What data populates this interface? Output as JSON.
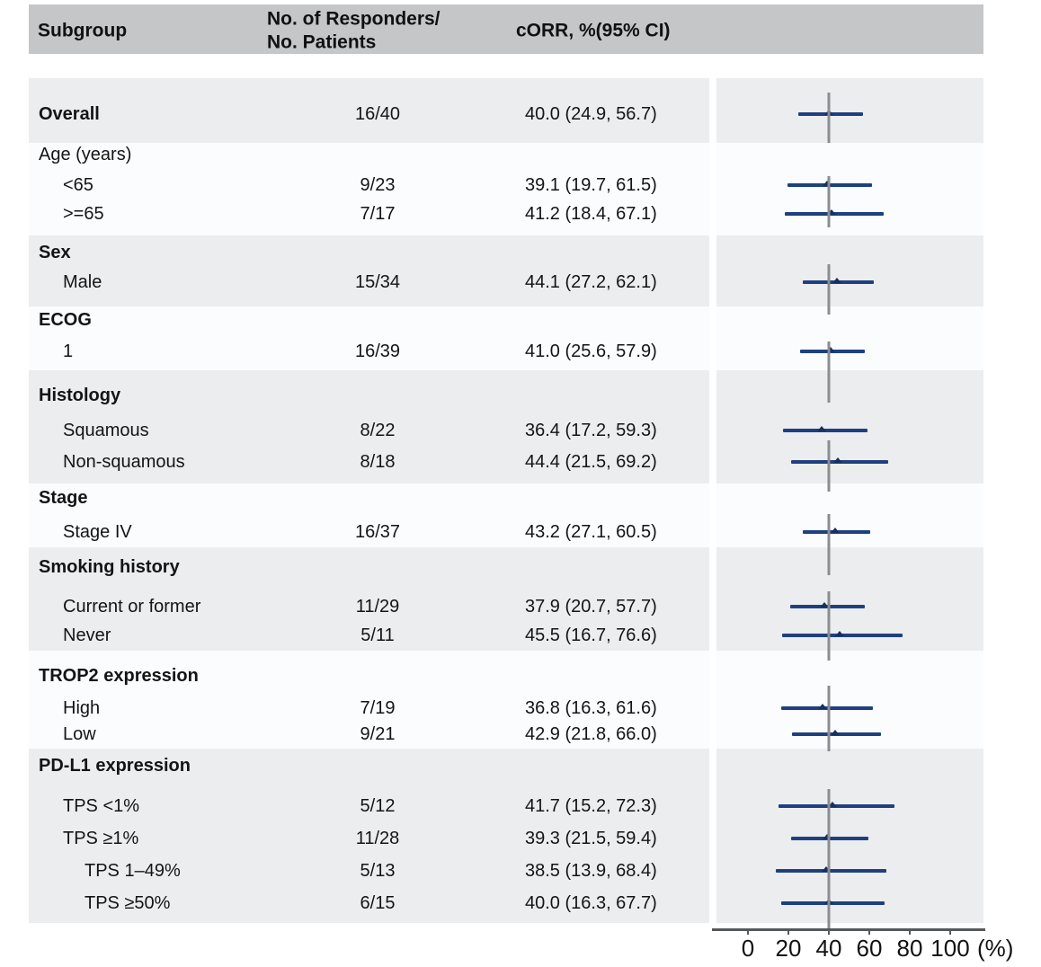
{
  "meta": {
    "background": "#ffffff",
    "header_band_color": "#c5c6c8",
    "shaded_band_color": "#ecedef",
    "white_band_color": "#fbfcfd",
    "ci_line_color": "#1e4080",
    "ci_marker_color": "#153062",
    "reference_line_color": "#8b8d90",
    "axis_color": "#55585a",
    "text_color": "#141414"
  },
  "header": {
    "subgroup": "Subgroup",
    "responders_line1": "No. of Responders/",
    "responders_line2": "No. Patients",
    "corr": "cORR, %(95% CI)"
  },
  "chart_data": {
    "type": "forest",
    "title": "",
    "xlabel": "(%)",
    "x_axis": {
      "min": 0,
      "max": 100,
      "ticks": [
        0,
        20,
        40,
        60,
        80,
        100
      ],
      "unit": "(%)",
      "reference_line": 40
    },
    "columns": [
      "Subgroup",
      "No. of Responders/No. Patients",
      "cORR, %(95% CI)"
    ],
    "sections": [
      {
        "title": null,
        "rows": [
          {
            "label": "Overall",
            "bold": true,
            "indent": 0,
            "responders": "16/40",
            "corr_text": "40.0 (24.9, 56.7)",
            "est": 40.0,
            "lo": 24.9,
            "hi": 56.7
          }
        ]
      },
      {
        "title": "Age (years)",
        "title_bold": false,
        "rows": [
          {
            "label": "<65",
            "indent": 1,
            "responders": "9/23",
            "corr_text": "39.1 (19.7, 61.5)",
            "est": 39.1,
            "lo": 19.7,
            "hi": 61.5
          },
          {
            "label": ">=65",
            "indent": 1,
            "responders": "7/17",
            "corr_text": "41.2 (18.4, 67.1)",
            "est": 41.2,
            "lo": 18.4,
            "hi": 67.1
          }
        ]
      },
      {
        "title": "Sex",
        "title_bold": true,
        "rows": [
          {
            "label": "Male",
            "indent": 1,
            "responders": "15/34",
            "corr_text": "44.1 (27.2, 62.1)",
            "est": 44.1,
            "lo": 27.2,
            "hi": 62.1
          }
        ]
      },
      {
        "title": "ECOG",
        "title_bold": true,
        "rows": [
          {
            "label": "1",
            "indent": 1,
            "responders": "16/39",
            "corr_text": "41.0 (25.6, 57.9)",
            "est": 41.0,
            "lo": 25.6,
            "hi": 57.9
          }
        ]
      },
      {
        "title": "Histology",
        "title_bold": true,
        "rows": [
          {
            "label": "Squamous",
            "indent": 1,
            "responders": "8/22",
            "corr_text": "36.4 (17.2, 59.3)",
            "est": 36.4,
            "lo": 17.2,
            "hi": 59.3
          },
          {
            "label": "Non-squamous",
            "indent": 1,
            "responders": "8/18",
            "corr_text": "44.4 (21.5, 69.2)",
            "est": 44.4,
            "lo": 21.5,
            "hi": 69.2
          }
        ]
      },
      {
        "title": "Stage",
        "title_bold": true,
        "rows": [
          {
            "label": "Stage IV",
            "indent": 1,
            "responders": "16/37",
            "corr_text": "43.2 (27.1, 60.5)",
            "est": 43.2,
            "lo": 27.1,
            "hi": 60.5
          }
        ]
      },
      {
        "title": "Smoking history",
        "title_bold": true,
        "rows": [
          {
            "label": "Current or former",
            "indent": 1,
            "responders": "11/29",
            "corr_text": "37.9 (20.7, 57.7)",
            "est": 37.9,
            "lo": 20.7,
            "hi": 57.7
          },
          {
            "label": "Never",
            "indent": 1,
            "responders": "5/11",
            "corr_text": "45.5 (16.7, 76.6)",
            "est": 45.5,
            "lo": 16.7,
            "hi": 76.6
          }
        ]
      },
      {
        "title": "TROP2 expression",
        "title_bold": true,
        "rows": [
          {
            "label": "High",
            "indent": 1,
            "responders": "7/19",
            "corr_text": "36.8 (16.3, 61.6)",
            "est": 36.8,
            "lo": 16.3,
            "hi": 61.6
          },
          {
            "label": "Low",
            "indent": 1,
            "responders": "9/21",
            "corr_text": "42.9 (21.8, 66.0)",
            "est": 42.9,
            "lo": 21.8,
            "hi": 66.0
          }
        ]
      },
      {
        "title": "PD-L1 expression",
        "title_bold": true,
        "rows": [
          {
            "label": "TPS <1%",
            "indent": 1,
            "responders": "5/12",
            "corr_text": "41.7 (15.2, 72.3)",
            "est": 41.7,
            "lo": 15.2,
            "hi": 72.3
          },
          {
            "label": "TPS ≥1%",
            "indent": 1,
            "responders": "11/28",
            "corr_text": "39.3 (21.5, 59.4)",
            "est": 39.3,
            "lo": 21.5,
            "hi": 59.4
          },
          {
            "label": "TPS 1–49%",
            "indent": 2,
            "responders": "5/13",
            "corr_text": "38.5 (13.9, 68.4)",
            "est": 38.5,
            "lo": 13.9,
            "hi": 68.4
          },
          {
            "label": "TPS ≥50%",
            "indent": 2,
            "responders": "6/15",
            "corr_text": "40.0 (16.3, 67.7)",
            "est": 40.0,
            "lo": 16.3,
            "hi": 67.7
          }
        ]
      }
    ]
  }
}
